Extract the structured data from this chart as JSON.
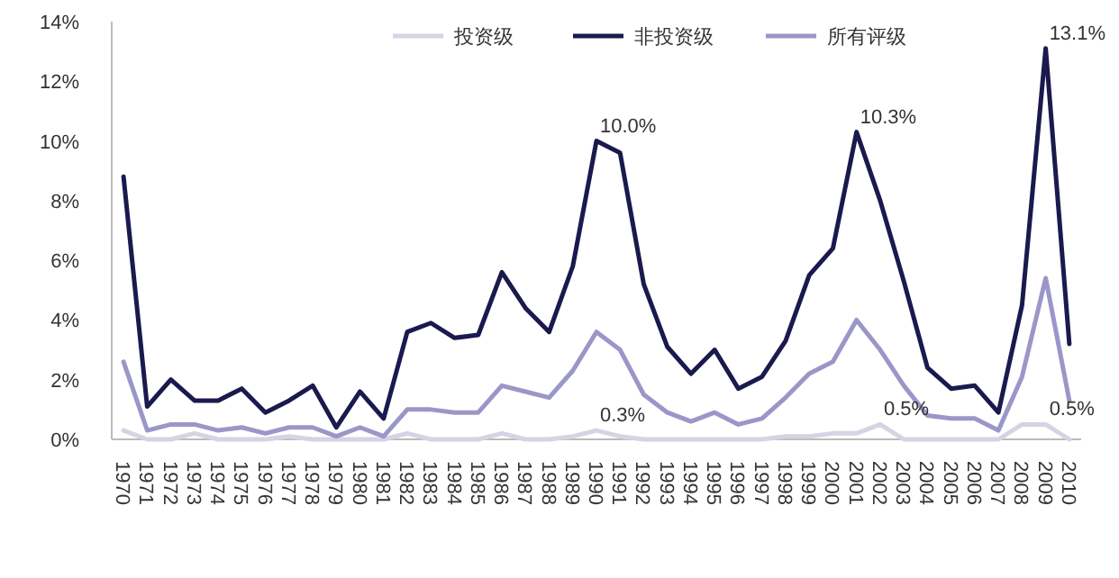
{
  "chart_data": {
    "type": "line",
    "categories": [
      "1970",
      "1971",
      "1972",
      "1973",
      "1974",
      "1975",
      "1976",
      "1977",
      "1978",
      "1979",
      "1980",
      "1981",
      "1982",
      "1983",
      "1984",
      "1985",
      "1986",
      "1987",
      "1988",
      "1989",
      "1990",
      "1991",
      "1992",
      "1993",
      "1994",
      "1995",
      "1996",
      "1997",
      "1998",
      "1999",
      "2000",
      "2001",
      "2002",
      "2003",
      "2004",
      "2005",
      "2006",
      "2007",
      "2008",
      "2009",
      "2010"
    ],
    "series": [
      {
        "name": "投资级",
        "color": "#d4d4e4",
        "values": [
          0.3,
          0,
          0,
          0.2,
          0,
          0,
          0,
          0.1,
          0,
          0,
          0,
          0,
          0.2,
          0,
          0,
          0,
          0.2,
          0,
          0,
          0.1,
          0.3,
          0.1,
          0,
          0,
          0,
          0,
          0,
          0,
          0.1,
          0.1,
          0.2,
          0.2,
          0.5,
          0,
          0,
          0,
          0,
          0,
          0.5,
          0.5,
          0
        ],
        "value_labels": [
          null,
          null,
          null,
          null,
          null,
          null,
          null,
          null,
          null,
          null,
          null,
          null,
          null,
          null,
          null,
          null,
          null,
          null,
          null,
          null,
          "0.3%",
          null,
          null,
          null,
          null,
          null,
          null,
          null,
          null,
          null,
          null,
          null,
          "0.5%",
          null,
          null,
          null,
          null,
          null,
          null,
          "0.5%",
          null
        ]
      },
      {
        "name": "非投资级",
        "color": "#1a1a4e",
        "values": [
          8.8,
          1.1,
          2.0,
          1.3,
          1.3,
          1.7,
          0.9,
          1.3,
          1.8,
          0.4,
          1.6,
          0.7,
          3.6,
          3.9,
          3.4,
          3.5,
          5.6,
          4.4,
          3.6,
          5.8,
          10.0,
          9.6,
          5.2,
          3.1,
          2.2,
          3.0,
          1.7,
          2.1,
          3.3,
          5.5,
          6.4,
          10.3,
          8.0,
          5.3,
          2.4,
          1.7,
          1.8,
          0.9,
          4.5,
          13.1,
          3.2
        ],
        "value_labels": [
          null,
          null,
          null,
          null,
          null,
          null,
          null,
          null,
          null,
          null,
          null,
          null,
          null,
          null,
          null,
          null,
          null,
          null,
          null,
          null,
          "10.0%",
          null,
          null,
          null,
          null,
          null,
          null,
          null,
          null,
          null,
          null,
          "10.3%",
          null,
          null,
          null,
          null,
          null,
          null,
          null,
          "13.1%",
          null
        ]
      },
      {
        "name": "所有评级",
        "color": "#9a97c8",
        "values": [
          2.6,
          0.3,
          0.5,
          0.5,
          0.3,
          0.4,
          0.2,
          0.4,
          0.4,
          0.1,
          0.4,
          0.1,
          1.0,
          1.0,
          0.9,
          0.9,
          1.8,
          1.6,
          1.4,
          2.3,
          3.6,
          3.0,
          1.5,
          0.9,
          0.6,
          0.9,
          0.5,
          0.7,
          1.4,
          2.2,
          2.6,
          4.0,
          3.0,
          1.8,
          0.8,
          0.7,
          0.7,
          0.3,
          2.1,
          5.4,
          1.3
        ]
      }
    ],
    "ylim": [
      0,
      14
    ],
    "yticks": [
      {
        "value": 0,
        "label": "0%"
      },
      {
        "value": 2,
        "label": "2%"
      },
      {
        "value": 4,
        "label": "4%"
      },
      {
        "value": 6,
        "label": "6%"
      },
      {
        "value": 8,
        "label": "8%"
      },
      {
        "value": 10,
        "label": "10%"
      },
      {
        "value": 12,
        "label": "12%"
      },
      {
        "value": 14,
        "label": "14%"
      }
    ],
    "grid": false,
    "legend": "top right",
    "marker": "none",
    "line_style": "solid"
  }
}
